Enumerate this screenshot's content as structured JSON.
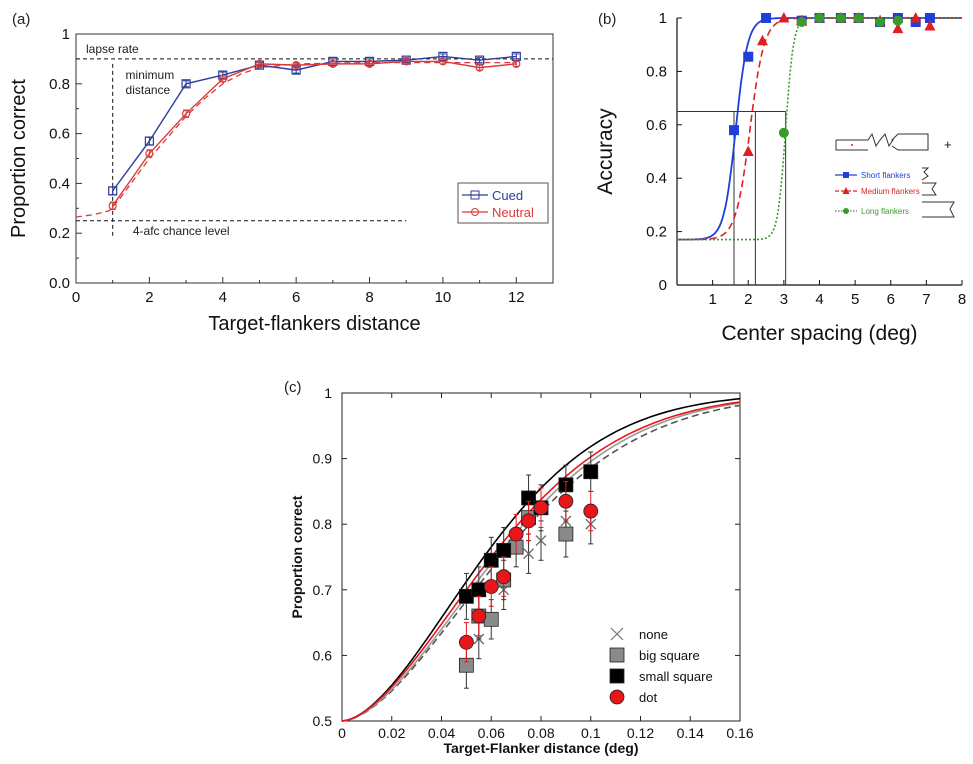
{
  "chart_data": [
    {
      "panel_label": "(a)",
      "type": "line",
      "xlabel": "Target-flankers distance",
      "ylabel": "Proportion correct",
      "xlim": [
        0,
        13
      ],
      "ylim": [
        0,
        1
      ],
      "xticks": [
        0,
        2,
        4,
        6,
        8,
        10,
        12
      ],
      "yticks": [
        0.0,
        0.2,
        0.4,
        0.6,
        0.8,
        1
      ],
      "ytick_labels": [
        "0.0",
        "0.2",
        "0.4",
        "0.6",
        "0.8",
        "1"
      ],
      "legend_position": "center-right",
      "grid": false,
      "x": [
        1,
        2,
        3,
        4,
        5,
        6,
        7,
        8,
        9,
        10,
        11,
        12
      ],
      "series": [
        {
          "name": "Cued",
          "color": "#2d3e9a",
          "marker": "square-open",
          "values": [
            0.37,
            0.57,
            0.8,
            0.835,
            0.875,
            0.855,
            0.89,
            0.89,
            0.895,
            0.91,
            0.895,
            0.91
          ],
          "errors": [
            0.015,
            0.015,
            0.012,
            0.012,
            0.01,
            0.012,
            0.01,
            0.01,
            0.01,
            0.01,
            0.01,
            0.01
          ]
        },
        {
          "name": "Neutral",
          "color": "#d93a3a",
          "marker": "circle-open",
          "values": [
            0.31,
            0.52,
            0.68,
            0.82,
            0.88,
            0.875,
            0.88,
            0.88,
            0.89,
            0.89,
            0.865,
            0.88
          ],
          "errors": [
            0.015,
            0.015,
            0.015,
            0.012,
            0.01,
            0.01,
            0.01,
            0.01,
            0.01,
            0.01,
            0.01,
            0.01
          ]
        }
      ],
      "fit_curve": {
        "color": "#d93a3a",
        "style": "dashed",
        "x": [
          0,
          0.5,
          0.9,
          1.2,
          1.5,
          2.0,
          2.5,
          3.0,
          3.5,
          4.0,
          4.5,
          5.0,
          6.0,
          8.0,
          10.0,
          12.0
        ],
        "y": [
          0.265,
          0.275,
          0.29,
          0.34,
          0.4,
          0.5,
          0.585,
          0.67,
          0.74,
          0.8,
          0.84,
          0.865,
          0.88,
          0.885,
          0.885,
          0.885
        ]
      },
      "annotations": {
        "lapse_rate": {
          "text": "lapse rate",
          "y": 0.9
        },
        "chance": {
          "text": "4-afc chance level",
          "y": 0.25
        },
        "min_distance": {
          "line1": "minimum",
          "line2": "distance",
          "x": 1
        }
      }
    },
    {
      "panel_label": "(b)",
      "type": "line",
      "xlabel": "Center spacing (deg)",
      "ylabel": "Accuracy",
      "xlim": [
        0,
        8
      ],
      "ylim": [
        0,
        1
      ],
      "xticks": [
        1,
        2,
        3,
        4,
        5,
        6,
        7,
        8
      ],
      "yticks": [
        0,
        0.2,
        0.4,
        0.6,
        0.8,
        1
      ],
      "ytick_labels": [
        "0",
        "0.2",
        "0.4",
        "0.6",
        "0.8",
        "1"
      ],
      "legend_position": "right",
      "grid": false,
      "threshold": {
        "y": 0.65,
        "x_values": [
          1.6,
          2.2,
          3.05
        ]
      },
      "series": [
        {
          "name": "Short flankers",
          "color": "#1f3fd8",
          "marker": "square",
          "style": "solid",
          "x": [
            1.6,
            2.0,
            2.5,
            3.5,
            4.0,
            4.6,
            5.1,
            5.7,
            6.2,
            6.7,
            7.1
          ],
          "y": [
            0.58,
            0.855,
            1.0,
            0.99,
            1.0,
            1.0,
            1.0,
            0.985,
            1.0,
            0.985,
            1.0
          ],
          "fit": {
            "x0": 1.65,
            "k": 6.0,
            "lower": 0.17,
            "upper": 1.0
          }
        },
        {
          "name": "Medium flankers",
          "color": "#e02020",
          "marker": "triangle",
          "style": "dashed",
          "x": [
            2.0,
            2.4,
            3.0,
            3.5,
            4.0,
            4.6,
            5.1,
            5.7,
            6.2,
            6.7,
            7.1
          ],
          "y": [
            0.5,
            0.915,
            1.0,
            0.99,
            1.0,
            1.0,
            1.0,
            0.99,
            0.96,
            1.0,
            0.97
          ],
          "fit": {
            "x0": 2.05,
            "k": 5.0,
            "lower": 0.17,
            "upper": 1.0
          }
        },
        {
          "name": "Long flankers",
          "color": "#3a9a2a",
          "marker": "circle",
          "style": "dotted",
          "x": [
            3.0,
            3.5,
            4.0,
            4.6,
            5.1,
            5.7,
            6.2
          ],
          "y": [
            0.57,
            0.985,
            1.0,
            1.0,
            1.0,
            0.985,
            0.99
          ],
          "fit": {
            "x0": 3.05,
            "k": 9.0,
            "lower": 0.17,
            "upper": 1.0
          }
        }
      ],
      "legend_extra": "+"
    },
    {
      "panel_label": "(c)",
      "type": "scatter",
      "xlabel": "Target-Flanker distance (deg)",
      "ylabel": "Proportion correct",
      "xlim": [
        0,
        0.16
      ],
      "ylim": [
        0.5,
        1
      ],
      "xticks": [
        0,
        0.02,
        0.04,
        0.06,
        0.08,
        0.1,
        0.12,
        0.14,
        0.16
      ],
      "xtick_labels": [
        "0",
        "0.02",
        "0.04",
        "0.06",
        "0.08",
        "0.1",
        "0.12",
        "0.14",
        "0.16"
      ],
      "yticks": [
        0.5,
        0.6,
        0.7,
        0.8,
        0.9,
        1
      ],
      "ytick_labels": [
        "0.5",
        "0.6",
        "0.7",
        "0.8",
        "0.9",
        "1"
      ],
      "legend_position": "bottom-right",
      "grid": false,
      "series": [
        {
          "name": "none",
          "marker": "x",
          "color": "#666666",
          "line_color": "#555555",
          "line_style": "dashed",
          "x": [
            0.055,
            0.065,
            0.075,
            0.08,
            0.09,
            0.1
          ],
          "y": [
            0.625,
            0.7,
            0.755,
            0.775,
            0.805,
            0.8
          ],
          "errors": [
            0.03,
            0.03,
            0.03,
            0.03,
            0.03,
            0.03
          ],
          "fit": {
            "x0": 0.064,
            "k": 26.5
          }
        },
        {
          "name": "big square",
          "marker": "square",
          "color": "#8a8a8a",
          "line_color": "#999999",
          "line_style": "solid",
          "x": [
            0.05,
            0.055,
            0.06,
            0.065,
            0.07,
            0.075,
            0.09
          ],
          "y": [
            0.585,
            0.66,
            0.655,
            0.715,
            0.765,
            0.81,
            0.785
          ],
          "errors": [
            0.035,
            0.035,
            0.03,
            0.03,
            0.03,
            0.035,
            0.035
          ],
          "fit": {
            "x0": 0.062,
            "k": 27.5
          }
        },
        {
          "name": "small square",
          "marker": "square",
          "color": "#000000",
          "line_color": "#000000",
          "line_style": "solid",
          "x": [
            0.05,
            0.055,
            0.06,
            0.065,
            0.075,
            0.08,
            0.09,
            0.1
          ],
          "y": [
            0.69,
            0.7,
            0.745,
            0.76,
            0.84,
            0.825,
            0.86,
            0.88
          ],
          "errors": [
            0.035,
            0.035,
            0.035,
            0.035,
            0.035,
            0.035,
            0.03,
            0.03
          ],
          "fit": {
            "x0": 0.057,
            "k": 30.0
          }
        },
        {
          "name": "dot",
          "marker": "circle",
          "color": "#e8161b",
          "line_color": "#e8161b",
          "line_style": "solid",
          "x": [
            0.05,
            0.055,
            0.06,
            0.065,
            0.07,
            0.075,
            0.08,
            0.09,
            0.1
          ],
          "y": [
            0.62,
            0.66,
            0.705,
            0.72,
            0.785,
            0.805,
            0.825,
            0.835,
            0.82
          ],
          "errors": [
            0.03,
            0.03,
            0.03,
            0.03,
            0.03,
            0.03,
            0.03,
            0.03,
            0.03
          ],
          "fit": {
            "x0": 0.06,
            "k": 28.0
          }
        }
      ]
    }
  ]
}
